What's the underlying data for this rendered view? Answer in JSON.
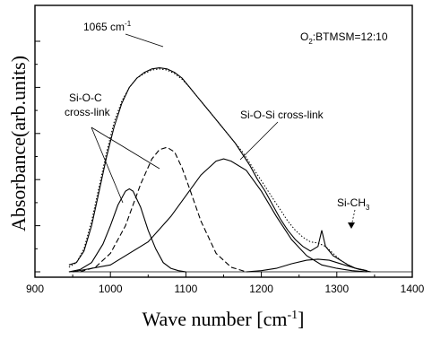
{
  "chart_data": {
    "type": "line",
    "xlabel": "Wave number [cm",
    "xlabel_sup": "-1",
    "xlabel_tail": "]",
    "ylabel": "Absorbance(arb.units)",
    "xlim": [
      900,
      1400
    ],
    "ylim": [
      0,
      1
    ],
    "x_ticks": [
      900,
      1000,
      1100,
      1200,
      1300,
      1400
    ],
    "x_tick_labels": [
      "900",
      "1000",
      "1100",
      "1200",
      "1300",
      "1400"
    ],
    "y_ticks_shown_without_labels": true,
    "grid": false,
    "annotations": {
      "peak": {
        "text": "1065 cm",
        "sup": "-1",
        "x": 1065,
        "y": 0.885
      },
      "condition": {
        "text": "O",
        "sub": "2",
        "tail": ":BTMSM=12:10"
      },
      "sioc_line1": "Si-O-C",
      "sioc_line2": "cross-link",
      "siosi": "Si-O-Si cross-link",
      "sich3": {
        "text": "Si-CH",
        "sub": "3"
      }
    },
    "series": [
      {
        "style": "solid",
        "x": [
          945,
          955,
          965,
          975,
          985,
          995,
          1005,
          1015,
          1025,
          1035,
          1045,
          1055,
          1065,
          1075,
          1085,
          1095,
          1105,
          1115,
          1125,
          1135,
          1145,
          1155,
          1165,
          1175,
          1185,
          1195,
          1205,
          1215,
          1225,
          1235,
          1245,
          1255,
          1265,
          1275,
          1280,
          1285,
          1295,
          1305,
          1315,
          1325,
          1340
        ],
        "y": [
          0.03,
          0.04,
          0.09,
          0.2,
          0.35,
          0.5,
          0.63,
          0.73,
          0.8,
          0.84,
          0.865,
          0.88,
          0.885,
          0.88,
          0.865,
          0.84,
          0.8,
          0.76,
          0.72,
          0.68,
          0.64,
          0.6,
          0.56,
          0.51,
          0.46,
          0.4,
          0.35,
          0.29,
          0.23,
          0.18,
          0.14,
          0.11,
          0.09,
          0.11,
          0.18,
          0.11,
          0.07,
          0.05,
          0.03,
          0.015,
          0.005
        ]
      },
      {
        "style": "dotted",
        "x": [
          945,
          955,
          965,
          975,
          985,
          995,
          1005,
          1015,
          1025,
          1035,
          1045,
          1055,
          1065,
          1075,
          1085,
          1095,
          1105,
          1115,
          1125,
          1135,
          1145,
          1155,
          1165,
          1175,
          1185,
          1195,
          1205,
          1215,
          1225,
          1235,
          1245,
          1255,
          1265,
          1275,
          1285,
          1295,
          1305,
          1315,
          1325,
          1340
        ],
        "y": [
          0.02,
          0.04,
          0.1,
          0.22,
          0.37,
          0.52,
          0.65,
          0.74,
          0.8,
          0.84,
          0.86,
          0.875,
          0.88,
          0.875,
          0.86,
          0.835,
          0.8,
          0.76,
          0.72,
          0.68,
          0.64,
          0.6,
          0.56,
          0.52,
          0.47,
          0.42,
          0.37,
          0.32,
          0.27,
          0.22,
          0.18,
          0.15,
          0.13,
          0.125,
          0.11,
          0.08,
          0.05,
          0.03,
          0.015,
          0.005
        ]
      },
      {
        "style": "solid",
        "x": [
          945,
          960,
          975,
          990,
          1000,
          1010,
          1020,
          1025,
          1030,
          1040,
          1050,
          1060,
          1070,
          1080,
          1090,
          1100
        ],
        "y": [
          0.0,
          0.01,
          0.04,
          0.12,
          0.2,
          0.29,
          0.35,
          0.36,
          0.35,
          0.28,
          0.18,
          0.1,
          0.04,
          0.015,
          0.005,
          0.0
        ]
      },
      {
        "style": "dashed",
        "x": [
          960,
          980,
          1000,
          1020,
          1040,
          1055,
          1065,
          1075,
          1085,
          1095,
          1105,
          1120,
          1140,
          1160,
          1180
        ],
        "y": [
          0.0,
          0.02,
          0.08,
          0.2,
          0.38,
          0.49,
          0.53,
          0.54,
          0.52,
          0.45,
          0.36,
          0.22,
          0.08,
          0.02,
          0.0
        ]
      },
      {
        "style": "solid",
        "x": [
          950,
          1000,
          1050,
          1080,
          1100,
          1120,
          1140,
          1150,
          1160,
          1180,
          1200,
          1220,
          1240,
          1260,
          1280,
          1300,
          1320,
          1340
        ],
        "y": [
          0.0,
          0.03,
          0.13,
          0.24,
          0.33,
          0.42,
          0.48,
          0.49,
          0.48,
          0.44,
          0.35,
          0.24,
          0.14,
          0.07,
          0.03,
          0.015,
          0.005,
          0.0
        ]
      },
      {
        "style": "solid",
        "x": [
          1180,
          1200,
          1220,
          1240,
          1260,
          1275,
          1290,
          1310,
          1330,
          1345
        ],
        "y": [
          0.0,
          0.005,
          0.015,
          0.035,
          0.05,
          0.055,
          0.05,
          0.03,
          0.01,
          0.0
        ]
      }
    ]
  }
}
